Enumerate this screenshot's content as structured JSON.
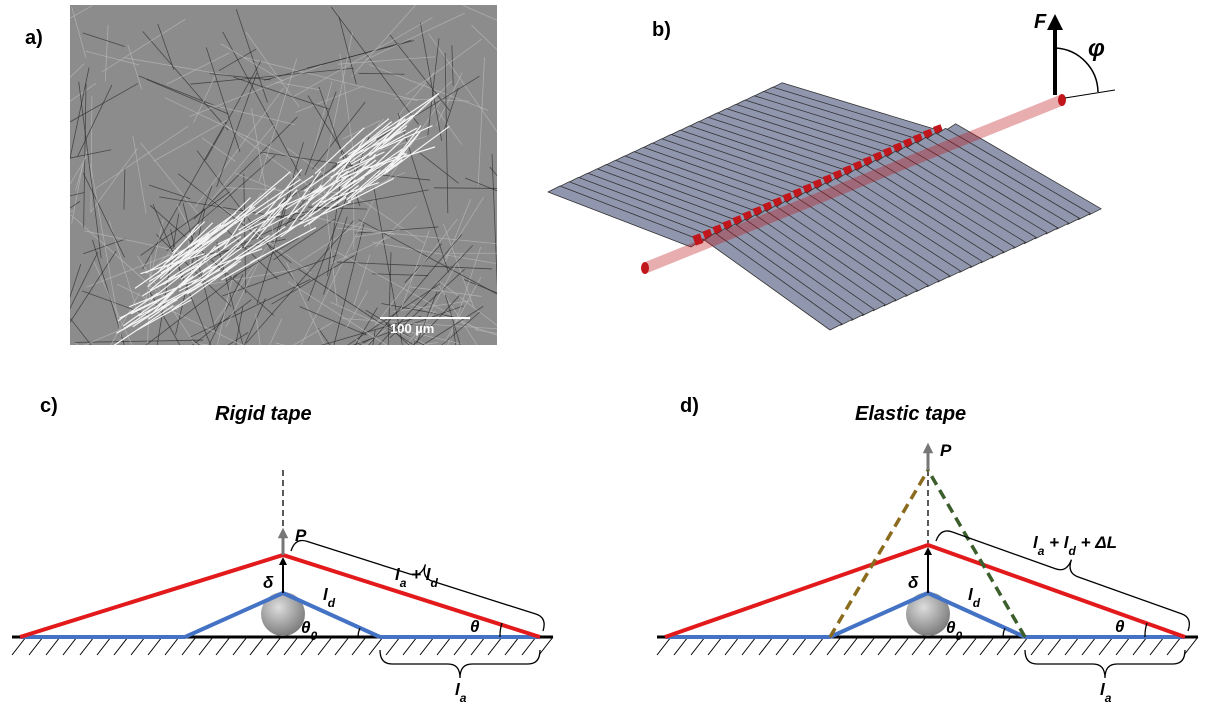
{
  "panels": {
    "a": {
      "label": "a)",
      "scale_bar": "100 µm"
    },
    "b": {
      "label": "b)",
      "force": "F",
      "angle": "φ"
    },
    "c": {
      "label": "c)",
      "title": "Rigid tape",
      "force": "P",
      "length_total": [
        "l",
        "a",
        " + l",
        "d"
      ],
      "deflection": "δ",
      "detached": [
        "l",
        "d"
      ],
      "initial_angle": [
        "θ",
        "0"
      ],
      "angle": "θ",
      "adhered": [
        "l",
        "a"
      ]
    },
    "d": {
      "label": "d)",
      "title": "Elastic tape",
      "force": "P",
      "length_total": [
        "l",
        "a",
        " + l",
        "d",
        " + ΔL"
      ],
      "deflection": "δ",
      "detached": [
        "l",
        "d"
      ],
      "initial_angle": [
        "θ",
        "0"
      ],
      "angle": "θ",
      "adhered": [
        "l",
        "a"
      ]
    }
  }
}
